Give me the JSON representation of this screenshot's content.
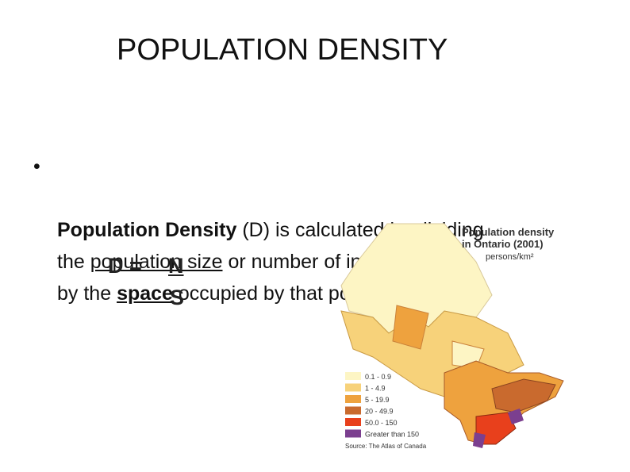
{
  "title": "POPULATION DENSITY",
  "bullet": {
    "parts": [
      "Population Density",
      " (D) is calculated by dividing",
      "the ",
      "population size",
      " or number of individuals (N)",
      "by the ",
      "space",
      " occupied by that population (S)."
    ]
  },
  "formula": {
    "lhs": "D =",
    "numerator": "N",
    "denominator": "S"
  },
  "map": {
    "title": [
      "Population density",
      "in Ontario (2001)"
    ],
    "unit": "persons/km²",
    "legend": [
      {
        "label": "0.1 - 0.9",
        "color": "#fdf5c4"
      },
      {
        "label": "1 - 4.9",
        "color": "#f7d27a"
      },
      {
        "label": "5 - 19.9",
        "color": "#eea23e"
      },
      {
        "label": "20 - 49.9",
        "color": "#c96a2e"
      },
      {
        "label": "50.0 - 150",
        "color": "#e8401c"
      },
      {
        "label": "Greater than 150",
        "color": "#7b3f8f"
      }
    ],
    "source": "Source: The Atlas of Canada"
  }
}
